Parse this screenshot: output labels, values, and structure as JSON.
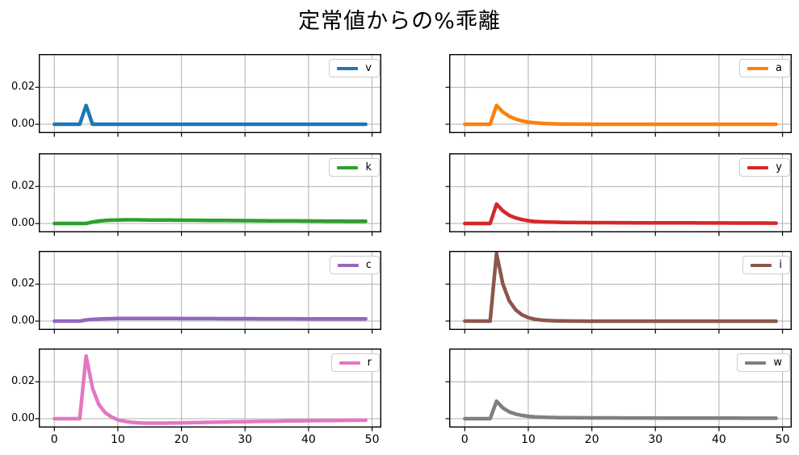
{
  "title": "定常値からの%乖離",
  "colors": {
    "background": "#ffffff",
    "grid": "#b0b0b0",
    "spine": "#000000",
    "tick_text": "#000000",
    "legend_border": "#cccccc"
  },
  "chart_data": {
    "type": "line",
    "title": "定常値からの%乖離",
    "layout": {
      "rows": 4,
      "cols": 2,
      "shared_x": true,
      "shared_y": true,
      "legend_position": "upper right",
      "grid": true
    },
    "xlim": [
      -2.45,
      51.45
    ],
    "ylim": [
      -0.0048,
      0.038
    ],
    "grid_x": [
      0,
      10,
      20,
      30,
      40,
      50
    ],
    "grid_y": [
      0,
      0.02
    ],
    "x_ticks": [
      {
        "value": 0,
        "label": "0"
      },
      {
        "value": 10,
        "label": "10"
      },
      {
        "value": 20,
        "label": "20"
      },
      {
        "value": 30,
        "label": "30"
      },
      {
        "value": 40,
        "label": "40"
      },
      {
        "value": 50,
        "label": "50"
      }
    ],
    "y_ticks": [
      {
        "value": 0.02,
        "label": "0.02"
      },
      {
        "value": 0,
        "label": "0.00"
      }
    ],
    "x": [
      0,
      1,
      2,
      3,
      4,
      5,
      6,
      7,
      8,
      9,
      10,
      11,
      12,
      13,
      14,
      15,
      16,
      17,
      18,
      19,
      20,
      21,
      22,
      23,
      24,
      25,
      26,
      27,
      28,
      29,
      30,
      31,
      32,
      33,
      34,
      35,
      36,
      37,
      38,
      39,
      40,
      41,
      42,
      43,
      44,
      45,
      46,
      47,
      48,
      49
    ],
    "subplots": [
      {
        "name": "v",
        "color": "#1f77b4",
        "row": 0,
        "col": 0,
        "values": [
          0,
          0,
          0,
          0,
          0,
          0.0102,
          0,
          0,
          0,
          0,
          0,
          0,
          0,
          0,
          0,
          0,
          0,
          0,
          0,
          0,
          0,
          0,
          0,
          0,
          0,
          0,
          0,
          0,
          0,
          0,
          0,
          0,
          0,
          0,
          0,
          0,
          0,
          0,
          0,
          0,
          0,
          0,
          0,
          0,
          0,
          0,
          0,
          0,
          0,
          0
        ]
      },
      {
        "name": "a",
        "color": "#ff7f0e",
        "row": 0,
        "col": 1,
        "values": [
          0,
          0,
          0,
          0,
          0,
          0.0102,
          0.0066,
          0.0043,
          0.0028,
          0.0018,
          0.0012,
          0.00078,
          0.0005,
          0.00033,
          0.00021,
          0.00014,
          9e-05,
          6e-05,
          4e-05,
          3e-05,
          2e-05,
          1e-05,
          1e-05,
          1e-05,
          0,
          0,
          0,
          0,
          0,
          0,
          0,
          0,
          0,
          0,
          0,
          0,
          0,
          0,
          0,
          0,
          0,
          0,
          0,
          0,
          0,
          0,
          0,
          0,
          0,
          0
        ]
      },
      {
        "name": "k",
        "color": "#2ca02c",
        "row": 1,
        "col": 0,
        "values": [
          0,
          0,
          0,
          0,
          0,
          0,
          0.0008,
          0.0013,
          0.0016,
          0.0018,
          0.0019,
          0.00195,
          0.00196,
          0.00195,
          0.00193,
          0.0019,
          0.00188,
          0.00185,
          0.00183,
          0.0018,
          0.00178,
          0.00175,
          0.00173,
          0.0017,
          0.00168,
          0.00166,
          0.00163,
          0.00161,
          0.00159,
          0.00157,
          0.00155,
          0.00152,
          0.0015,
          0.00148,
          0.00146,
          0.00144,
          0.00142,
          0.0014,
          0.00138,
          0.00136,
          0.00134,
          0.00132,
          0.0013,
          0.00129,
          0.00127,
          0.00125,
          0.00123,
          0.00122,
          0.0012,
          0.00118
        ]
      },
      {
        "name": "y",
        "color": "#d62728",
        "row": 1,
        "col": 1,
        "values": [
          0,
          0,
          0,
          0,
          0,
          0.0105,
          0.0068,
          0.0044,
          0.003,
          0.0021,
          0.0015,
          0.0011,
          0.0009,
          0.0008,
          0.0007,
          0.00062,
          0.00057,
          0.00053,
          0.0005,
          0.00048,
          0.00046,
          0.00044,
          0.00043,
          0.00042,
          0.0004,
          0.00039,
          0.00038,
          0.00037,
          0.00036,
          0.00035,
          0.00034,
          0.00033,
          0.00032,
          0.00031,
          0.0003,
          0.00029,
          0.00029,
          0.00028,
          0.00027,
          0.00026,
          0.00026,
          0.00025,
          0.00024,
          0.00024,
          0.00023,
          0.00022,
          0.00022,
          0.00021,
          0.0002,
          0.0002
        ]
      },
      {
        "name": "c",
        "color": "#9467bd",
        "row": 2,
        "col": 0,
        "values": [
          0,
          0,
          0,
          0,
          0,
          0.0006,
          0.0009,
          0.0011,
          0.00125,
          0.00133,
          0.00138,
          0.00141,
          0.00142,
          0.00142,
          0.00141,
          0.00141,
          0.0014,
          0.0014,
          0.00139,
          0.00138,
          0.00137,
          0.00137,
          0.00136,
          0.00135,
          0.00135,
          0.00134,
          0.00133,
          0.00132,
          0.00132,
          0.00131,
          0.0013,
          0.0013,
          0.00129,
          0.00128,
          0.00128,
          0.00127,
          0.00126,
          0.00126,
          0.00125,
          0.00124,
          0.00124,
          0.00123,
          0.00122,
          0.00122,
          0.00121,
          0.0012,
          0.0012,
          0.00119,
          0.00118,
          0.00118
        ]
      },
      {
        "name": "i",
        "color": "#8c564b",
        "row": 2,
        "col": 1,
        "values": [
          0,
          0,
          0,
          0,
          0,
          0.0365,
          0.02,
          0.011,
          0.0061,
          0.0034,
          0.0019,
          0.001,
          0.00057,
          0.00031,
          0.00017,
          9e-05,
          4e-05,
          1e-05,
          -1e-05,
          -3e-05,
          -4e-05,
          -4e-05,
          -4e-05,
          -4e-05,
          -4e-05,
          -4e-05,
          -4e-05,
          -4e-05,
          -4e-05,
          -4e-05,
          -3e-05,
          -3e-05,
          -3e-05,
          -3e-05,
          -3e-05,
          -3e-05,
          -3e-05,
          -3e-05,
          -3e-05,
          -3e-05,
          -2e-05,
          -2e-05,
          -2e-05,
          -2e-05,
          -2e-05,
          -2e-05,
          -2e-05,
          -2e-05,
          -2e-05,
          -2e-05
        ]
      },
      {
        "name": "r",
        "color": "#e377c2",
        "row": 3,
        "col": 0,
        "values": [
          0,
          0,
          0,
          0,
          0,
          0.034,
          0.0165,
          0.0077,
          0.0033,
          0.0009,
          -0.0006,
          -0.0014,
          -0.0019,
          -0.0022,
          -0.00235,
          -0.0024,
          -0.0024,
          -0.00238,
          -0.00234,
          -0.00229,
          -0.00223,
          -0.00217,
          -0.0021,
          -0.00204,
          -0.00197,
          -0.00191,
          -0.00184,
          -0.00178,
          -0.00172,
          -0.00166,
          -0.0016,
          -0.00154,
          -0.00149,
          -0.00143,
          -0.00138,
          -0.00133,
          -0.00128,
          -0.00123,
          -0.00119,
          -0.00114,
          -0.0011,
          -0.00106,
          -0.00102,
          -0.00098,
          -0.00094,
          -0.00091,
          -0.00087,
          -0.00084,
          -0.00081,
          -0.00078
        ]
      },
      {
        "name": "w",
        "color": "#7f7f7f",
        "row": 3,
        "col": 1,
        "values": [
          0,
          0,
          0,
          0,
          0,
          0.0095,
          0.0058,
          0.0037,
          0.0025,
          0.0018,
          0.0013,
          0.001,
          0.00085,
          0.00072,
          0.00064,
          0.00058,
          0.00054,
          0.00051,
          0.00049,
          0.00047,
          0.00046,
          0.00045,
          0.00044,
          0.00043,
          0.00042,
          0.00041,
          0.0004,
          0.00039,
          0.00039,
          0.00038,
          0.00037,
          0.00037,
          0.00036,
          0.00035,
          0.00035,
          0.00034,
          0.00033,
          0.00033,
          0.00032,
          0.00031,
          0.00031,
          0.0003,
          0.0003,
          0.00029,
          0.00028,
          0.00028,
          0.00027,
          0.00027,
          0.00026,
          0.00026
        ]
      }
    ]
  }
}
